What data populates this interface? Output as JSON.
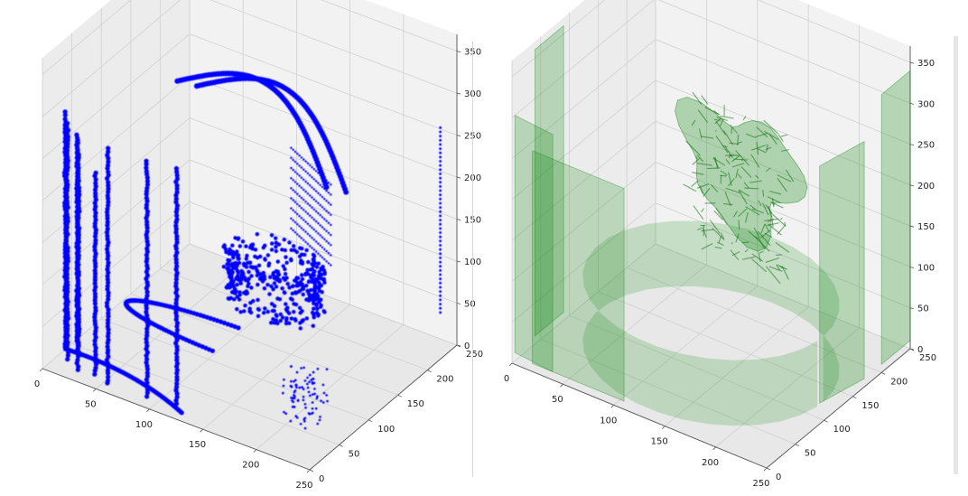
{
  "colors": {
    "left_points": "#0b0bf0",
    "right_mesh_fill": "#2e8b2e",
    "right_mesh_dense": "#0a6e0a",
    "pane": "#f2f2f2",
    "grid": "#d0d0d0",
    "axis_line": "#555555"
  },
  "chart_data": [
    {
      "type": "scatter",
      "projection": "3d",
      "marker": "point",
      "series": [
        {
          "color": "#0000ff"
        }
      ],
      "xlim": [
        0,
        250
      ],
      "ylim": [
        0,
        250
      ],
      "zlim": [
        0,
        370
      ],
      "x_ticks": [
        "0",
        "50",
        "100",
        "150",
        "200",
        "250"
      ],
      "y_ticks": [
        "0",
        "50",
        "100",
        "150",
        "200",
        "250"
      ],
      "z_ticks": [
        "0",
        "50",
        "100",
        "150",
        "200",
        "250",
        "300",
        "350"
      ],
      "grid": true
    },
    {
      "type": "surface",
      "projection": "3d",
      "series": [
        {
          "color": "#008000",
          "alpha": 0.25
        }
      ],
      "xlim": [
        0,
        250
      ],
      "ylim": [
        0,
        250
      ],
      "zlim": [
        0,
        370
      ],
      "x_ticks": [
        "0",
        "50",
        "100",
        "150",
        "200",
        "250"
      ],
      "y_ticks": [
        "0",
        "50",
        "100",
        "150",
        "200",
        "250"
      ],
      "z_ticks": [
        "0",
        "50",
        "100",
        "150",
        "200",
        "250",
        "300",
        "350"
      ],
      "grid": true
    }
  ]
}
